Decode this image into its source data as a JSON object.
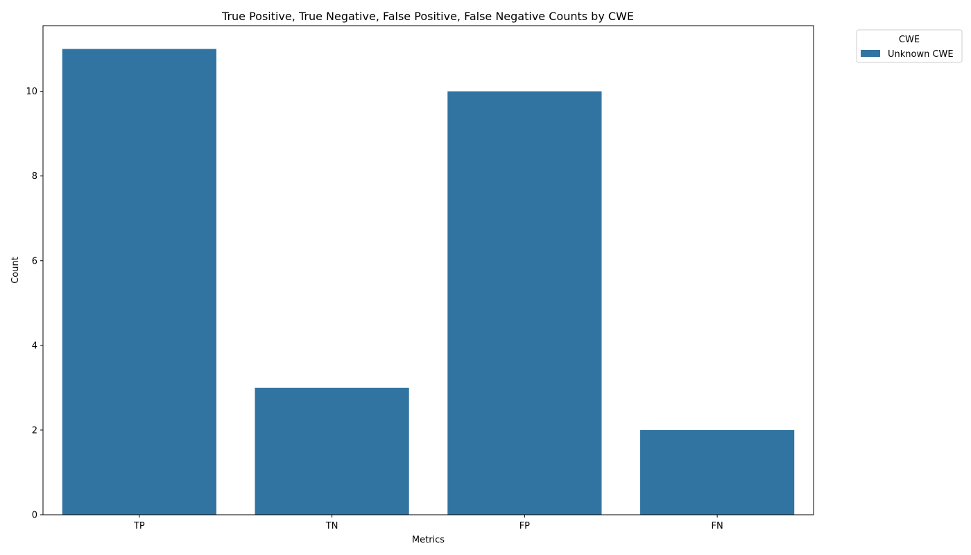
{
  "chart_data": {
    "type": "bar",
    "title": "True Positive, True Negative, False Positive, False Negative Counts by CWE",
    "xlabel": "Metrics",
    "ylabel": "Count",
    "categories": [
      "TP",
      "TN",
      "FP",
      "FN"
    ],
    "series": [
      {
        "name": "Unknown CWE",
        "values": [
          11,
          3,
          10,
          2
        ],
        "color": "#3274a1"
      }
    ],
    "ylim": [
      0,
      11.55
    ],
    "yticks": [
      0,
      2,
      4,
      6,
      8,
      10
    ],
    "grid": false,
    "legend": {
      "title": "CWE",
      "placement": "outside-top-right"
    }
  }
}
